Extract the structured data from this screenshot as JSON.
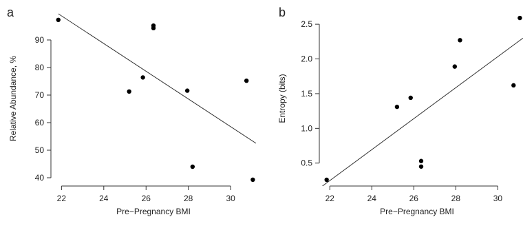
{
  "chart_data": [
    {
      "panel_label": "a",
      "type": "scatter",
      "title": "",
      "xlabel": "Pre−Pregnancy BMI",
      "ylabel": "Relative Abundance, %",
      "xlim": [
        21.5,
        31.2
      ],
      "ylim": [
        37,
        100
      ],
      "xticks": [
        22,
        24,
        26,
        28,
        30
      ],
      "yticks": [
        40,
        50,
        60,
        70,
        80,
        90
      ],
      "grid": false,
      "points": [
        {
          "x": 21.85,
          "y": 97.3
        },
        {
          "x": 25.2,
          "y": 71.3
        },
        {
          "x": 25.85,
          "y": 76.4
        },
        {
          "x": 26.35,
          "y": 95.2
        },
        {
          "x": 26.35,
          "y": 94.3
        },
        {
          "x": 27.95,
          "y": 71.6
        },
        {
          "x": 28.2,
          "y": 44.0
        },
        {
          "x": 30.75,
          "y": 75.2
        },
        {
          "x": 31.05,
          "y": 39.3
        }
      ],
      "fit_line": {
        "x": [
          21.85,
          31.2
        ],
        "y": [
          99.5,
          52.5
        ]
      }
    },
    {
      "panel_label": "b",
      "type": "scatter",
      "title": "",
      "xlabel": "Pre−Pregnancy BMI",
      "ylabel": "Entropy (bits)",
      "xlim": [
        21.5,
        31.2
      ],
      "ylim": [
        0.17,
        2.67
      ],
      "xticks": [
        22,
        24,
        26,
        28,
        30
      ],
      "yticks": [
        0.5,
        1.0,
        1.5,
        2.0,
        2.5
      ],
      "ytick_labels": [
        "0.5",
        "1.0",
        "1.5",
        "2.0",
        "2.5"
      ],
      "grid": false,
      "points": [
        {
          "x": 21.85,
          "y": 0.26
        },
        {
          "x": 25.2,
          "y": 1.31
        },
        {
          "x": 25.85,
          "y": 1.44
        },
        {
          "x": 26.35,
          "y": 0.53
        },
        {
          "x": 26.35,
          "y": 0.45
        },
        {
          "x": 27.95,
          "y": 1.89
        },
        {
          "x": 28.2,
          "y": 2.27
        },
        {
          "x": 30.75,
          "y": 1.62
        },
        {
          "x": 31.05,
          "y": 2.59
        }
      ],
      "fit_line": {
        "x": [
          21.65,
          31.2
        ],
        "y": [
          0.17,
          2.3
        ]
      }
    }
  ]
}
